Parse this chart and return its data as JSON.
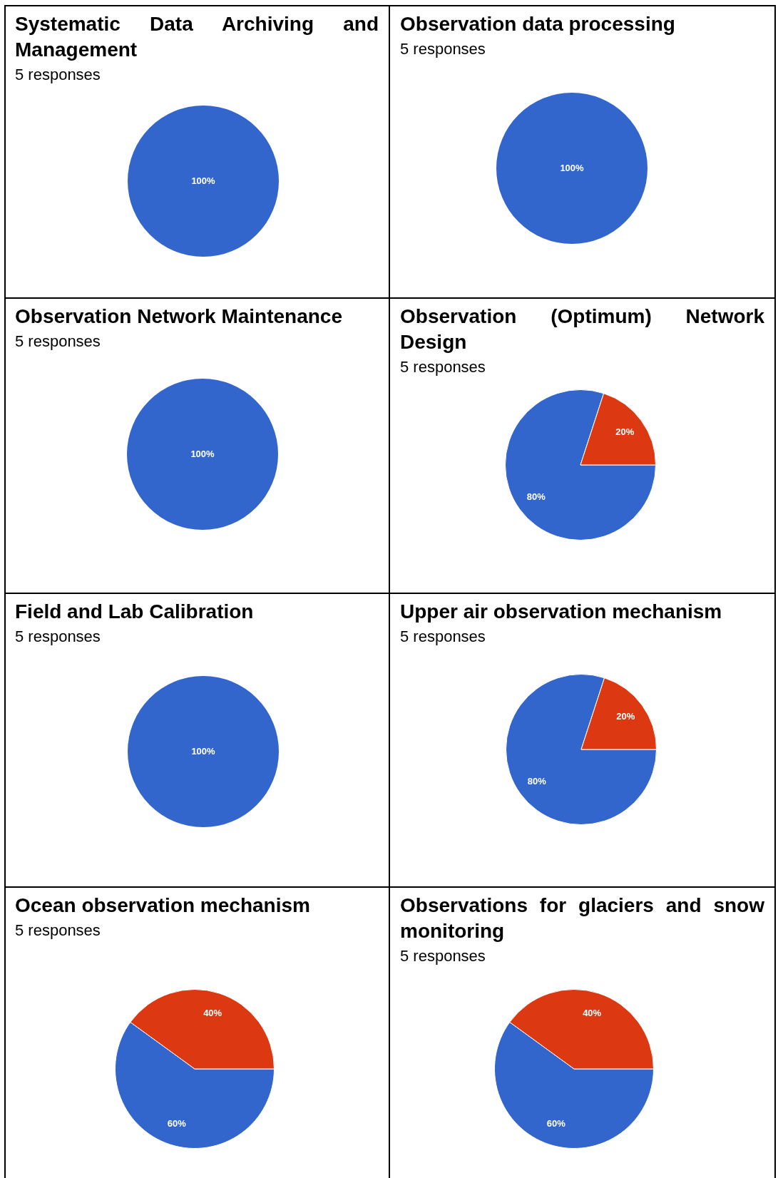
{
  "chart_data": [
    {
      "type": "pie",
      "title": "Systematic Data Archiving and Management",
      "subtitle": "5 responses",
      "categories": [
        null
      ],
      "values": [
        100
      ],
      "colors": [
        "#3366cc"
      ],
      "value_labels": [
        "100%"
      ]
    },
    {
      "type": "pie",
      "title": "Observation data processing",
      "subtitle": "5 responses",
      "categories": [
        null
      ],
      "values": [
        100
      ],
      "colors": [
        "#3366cc"
      ],
      "value_labels": [
        "100%"
      ]
    },
    {
      "type": "pie",
      "title": "Observation Network Maintenance",
      "subtitle": "5 responses",
      "categories": [
        null
      ],
      "values": [
        100
      ],
      "colors": [
        "#3366cc"
      ],
      "value_labels": [
        "100%"
      ]
    },
    {
      "type": "pie",
      "title": "Observation (Optimum) Network Design",
      "subtitle": "5 responses",
      "categories": [
        null,
        null
      ],
      "values": [
        80,
        20
      ],
      "colors": [
        "#3366cc",
        "#dc3912"
      ],
      "value_labels": [
        "80%",
        "20%"
      ]
    },
    {
      "type": "pie",
      "title": "Field and Lab Calibration",
      "subtitle": "5 responses",
      "categories": [
        null
      ],
      "values": [
        100
      ],
      "colors": [
        "#3366cc"
      ],
      "value_labels": [
        "100%"
      ]
    },
    {
      "type": "pie",
      "title": "Upper air observation mechanism",
      "subtitle": "5 responses",
      "categories": [
        null,
        null
      ],
      "values": [
        80,
        20
      ],
      "colors": [
        "#3366cc",
        "#dc3912"
      ],
      "value_labels": [
        "80%",
        "20%"
      ]
    },
    {
      "type": "pie",
      "title": "Ocean observation mechanism",
      "subtitle": "5 responses",
      "categories": [
        null,
        null
      ],
      "values": [
        60,
        40
      ],
      "colors": [
        "#3366cc",
        "#dc3912"
      ],
      "value_labels": [
        "60%",
        "40%"
      ]
    },
    {
      "type": "pie",
      "title": "Observations for glaciers and snow monitoring",
      "subtitle": "5 responses",
      "categories": [
        null,
        null
      ],
      "values": [
        60,
        40
      ],
      "colors": [
        "#3366cc",
        "#dc3912"
      ],
      "value_labels": [
        "60%",
        "40%"
      ]
    }
  ]
}
